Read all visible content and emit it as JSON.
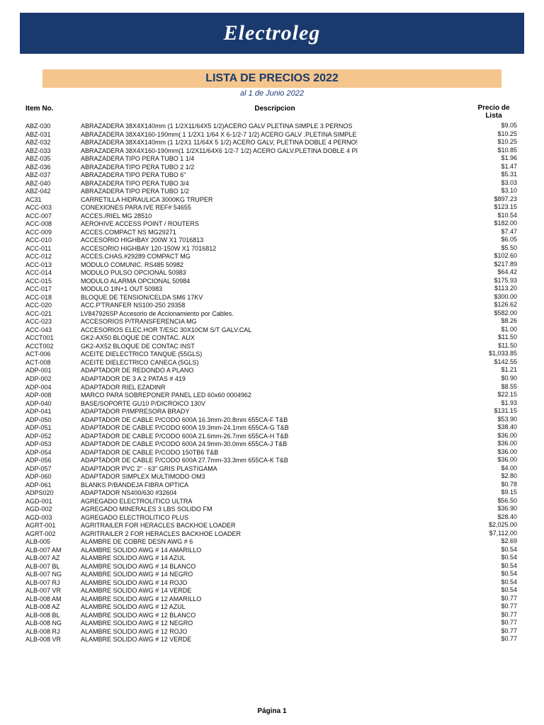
{
  "brand": "Electroleg",
  "title": "LISTA DE PRECIOS 2022",
  "subtitle": "al 1 de Junio 2022",
  "columns": {
    "item": "Item No.",
    "desc": "Descripcion",
    "price": "Precio de Lista"
  },
  "footer": "Página 1",
  "colors": {
    "banner_bg": "#1a3a6e",
    "banner_text": "#ffffff",
    "title_bg": "#f4c58c",
    "title_text": "#1a3a6e",
    "page_bg": "#ffffff"
  },
  "rows": [
    {
      "item": "ABZ-030",
      "desc": "ABRAZADERA 38X4X140mm (1 1/2X11/64X5 1/2)ACERO GALV PLETINA SIMPLE 3 PERNOS",
      "price": "$9.05"
    },
    {
      "item": "ABZ-031",
      "desc": "ABRAZADERA 38X4X160-190mm( 1 1/2X1 1/64 X 6-1/2-7 1/2) ACERO GALV .PLETINA SIMPLE",
      "price": "$10.25"
    },
    {
      "item": "ABZ-032",
      "desc": "ABRAZADERA 38X4X140mm (1 1/2X1 11/64X 5 1/2) ACERO GALV, PLETINA DOBLE 4 PERNO!",
      "price": "$10.25"
    },
    {
      "item": "ABZ-033",
      "desc": "ABRAZADERA 38X4X160-190mm(1 1/2X11/64X6 1/2-7 1/2) ACERO GALV.PLETINA DOBLE 4 PI",
      "price": "$10.85"
    },
    {
      "item": "ABZ-035",
      "desc": "ABRAZADERA TIPO PERA TUBO 1 1/4",
      "price": "$1.96"
    },
    {
      "item": "ABZ-036",
      "desc": "ABRAZADERA TIPO PERA TUBO 2 1/2",
      "price": "$1.47"
    },
    {
      "item": "ABZ-037",
      "desc": "ABRAZADERA TIPO PERA TUBO 6\"",
      "price": "$5.31"
    },
    {
      "item": "ABZ-040",
      "desc": "ABRAZADERA TIPO PERA TUBO 3/4",
      "price": "$3.03"
    },
    {
      "item": "ABZ-042",
      "desc": "ABRAZADERA TIPO PERA TUBO 1/2",
      "price": "$3.10"
    },
    {
      "item": "AC31",
      "desc": "CARRETILLA HIDRAULICA 3000KG TRUPER",
      "price": "$897.23"
    },
    {
      "item": "ACC-003",
      "desc": "CONEXIONES PARA IVE REF# 54655",
      "price": "$123.15"
    },
    {
      "item": "ACC-007",
      "desc": "ACCES./RIEL MG 28510",
      "price": "$10.54"
    },
    {
      "item": "ACC-008",
      "desc": "AEROHIVE ACCESS POINT / ROUTERS",
      "price": "$182.00"
    },
    {
      "item": "ACC-009",
      "desc": "ACCES.COMPACT NS MG29271",
      "price": "$7.47"
    },
    {
      "item": "ACC-010",
      "desc": "ACCESORIO HIGHBAY 200W  X1  7016813",
      "price": "$6.05"
    },
    {
      "item": "ACC-011",
      "desc": "ACCESORIO HIGHBAY 120-150W  X1  7016812",
      "price": "$5.50"
    },
    {
      "item": "ACC-012",
      "desc": "ACCES.CHAS.#29289 COMPACT MG",
      "price": "$102.60"
    },
    {
      "item": "ACC-013",
      "desc": "MODULO COMUNIC. RS485  50982",
      "price": "$217.89"
    },
    {
      "item": "ACC-014",
      "desc": "MODULO PULSO OPCIONAL  50983",
      "price": "$64.42"
    },
    {
      "item": "ACC-015",
      "desc": "MODULO ALARMA OPCIONAL  50984",
      "price": "$175.93"
    },
    {
      "item": "ACC-017",
      "desc": "MODULO 1IN+1 OUT 50983",
      "price": "$113.20"
    },
    {
      "item": "ACC-018",
      "desc": "BLOQUE DE TENSION/CELDA SM6 17KV",
      "price": "$300.00"
    },
    {
      "item": "ACC-020",
      "desc": "ACC.P'TRANFER NS100-250 29358",
      "price": "$126.62"
    },
    {
      "item": "ACC-021",
      "desc": "LV847926SP Accesorio de Accionamiento por Cables.",
      "price": "$582.00"
    },
    {
      "item": "ACC-023",
      "desc": "ACCESORIOS P/TRANSFERENCIA MG",
      "price": "$8.26"
    },
    {
      "item": "ACC-043",
      "desc": "ACCESORIOS ELEC.HOR T/ESC 30X10CM S/T GALV.CAL",
      "price": "$1.00"
    },
    {
      "item": "ACCT001",
      "desc": "GK2-AX50 BLOQUE DE CONTAC. AUX",
      "price": "$11.50"
    },
    {
      "item": "ACCT002",
      "desc": "GK2-AX52 BLOQUE DE CONTAC INST",
      "price": "$11.50"
    },
    {
      "item": "ACT-006",
      "desc": "ACEITE DIELECTRICO TANQUE (55GLS)",
      "price": "$1,033.85"
    },
    {
      "item": "ACT-008",
      "desc": "ACEITE DIELECTRICO CANECA (5GLS)",
      "price": "$142.55"
    },
    {
      "item": "ADP-001",
      "desc": "ADAPTADOR DE REDONDO A PLANO",
      "price": "$1.21"
    },
    {
      "item": "ADP-002",
      "desc": "ADAPTADOR DE 3 A 2 PATAS # 419",
      "price": "$0.90"
    },
    {
      "item": "ADP-004",
      "desc": "ADAPTADOR RIEL EZADINR",
      "price": "$8.55"
    },
    {
      "item": "ADP-008",
      "desc": "MARCO PARA SOBREPONER PANEL LED 60x60  0004962",
      "price": "$22.15"
    },
    {
      "item": "ADP-040",
      "desc": "BASE/SOPORTE GU10 P/DICROICO 130V",
      "price": "$1.93"
    },
    {
      "item": "ADP-041",
      "desc": "ADAPTADOR P/IMPRESORA BRADY",
      "price": "$131.15"
    },
    {
      "item": "ADP-050",
      "desc": "ADAPTADOR DE CABLE P/CODO 600A 16.3mm-20.8mm 655CA-F  T&B",
      "price": "$53.90"
    },
    {
      "item": "ADP-051",
      "desc": "ADAPTADOR DE CABLE P/CODO 600A 19.3mm-24.1mm 655CA-G T&B",
      "price": "$38.40"
    },
    {
      "item": "ADP-052",
      "desc": "ADAPTADOR DE CABLE P/CODO 600A 21.6mm-26.7mm 655CA-H T&B",
      "price": "$36.00"
    },
    {
      "item": "ADP-053",
      "desc": "ADAPTADOR DE CABLE P/CODO 600A 24.9mm-30.0mm 655CA-J T&B",
      "price": "$36.00"
    },
    {
      "item": "ADP-054",
      "desc": "ADAPTADOR DE CABLE P/CODO 150TB6 T&B",
      "price": "$36.00"
    },
    {
      "item": "ADP-056",
      "desc": "ADAPTADOR DE CABLE P/CODO 600A 27.7mm-33.3mm 655CA-K T&B",
      "price": "$36.00"
    },
    {
      "item": "ADP-057",
      "desc": "ADAPTADOR PVC 2\" - 63\" GRIS PLASTIGAMA",
      "price": "$4.00"
    },
    {
      "item": "ADP-060",
      "desc": "ADAPTADOR SIMPLEX MULTIMODO OM3",
      "price": "$2.80"
    },
    {
      "item": "ADP-061",
      "desc": "BLANKS P/BANDEJA FIBRA OPTICA",
      "price": "$0.78"
    },
    {
      "item": "ADPS020",
      "desc": "ADAPTADOR NS400/630 #32604",
      "price": "$9.15"
    },
    {
      "item": "AGD-001",
      "desc": "AGREGADO ELECTROLITICO ULTRA",
      "price": "$56.50"
    },
    {
      "item": "AGD-002",
      "desc": "AGREGADO MINERALES 3 LBS SOLIDO FM",
      "price": "$36.90"
    },
    {
      "item": "AGD-003",
      "desc": "AGREGADO ELECTROLITICO PLUS",
      "price": "$28.40"
    },
    {
      "item": "AGRT-001",
      "desc": "AGRITRAILER FOR HERACLES BACKHOE LOADER",
      "price": "$2,025.00"
    },
    {
      "item": "AGRT-002",
      "desc": "AGRITRAILER 2 FOR HERACLES BACKHOE LOADER",
      "price": "$7,112.00"
    },
    {
      "item": "ALB-005",
      "desc": "ALAMBRE DE COBRE DESN AWG # 6",
      "price": "$2.69"
    },
    {
      "item": "ALB-007 AM",
      "desc": "ALAMBRE SOLIDO AWG # 14 AMARILLO",
      "price": "$0.54"
    },
    {
      "item": "ALB-007 AZ",
      "desc": "ALAMBRE SOLIDO AWG # 14 AZUL",
      "price": "$0.54"
    },
    {
      "item": "ALB-007 BL",
      "desc": "ALAMBRE SOLIDO AWG # 14 BLANCO",
      "price": "$0.54"
    },
    {
      "item": "ALB-007 NG",
      "desc": "ALAMBRE SOLIDO AWG # 14 NEGRO",
      "price": "$0.54"
    },
    {
      "item": "ALB-007 RJ",
      "desc": "ALAMBRE SOLIDO AWG # 14 ROJO",
      "price": "$0.54"
    },
    {
      "item": "ALB-007 VR",
      "desc": "ALAMBRE SOLIDO AWG # 14 VERDE",
      "price": "$0.54"
    },
    {
      "item": "ALB-008 AM",
      "desc": "ALAMBRE SOLIDO AWG # 12 AMARILLO",
      "price": "$0.77"
    },
    {
      "item": "ALB-008 AZ",
      "desc": "ALAMBRE SOLIDO AWG # 12 AZUL",
      "price": "$0.77"
    },
    {
      "item": "ALB-008 BL",
      "desc": "ALAMBRE SOLIDO AWG # 12 BLANCO",
      "price": "$0.77"
    },
    {
      "item": "ALB-008 NG",
      "desc": "ALAMBRE SOLIDO AWG # 12 NEGRO",
      "price": "$0.77"
    },
    {
      "item": "ALB-008 RJ",
      "desc": "ALAMBRE SOLIDO AWG # 12 ROJO",
      "price": "$0.77"
    },
    {
      "item": "ALB-008 VR",
      "desc": "ALAMBRE SOLIDO AWG # 12 VERDE",
      "price": "$0.77"
    }
  ]
}
